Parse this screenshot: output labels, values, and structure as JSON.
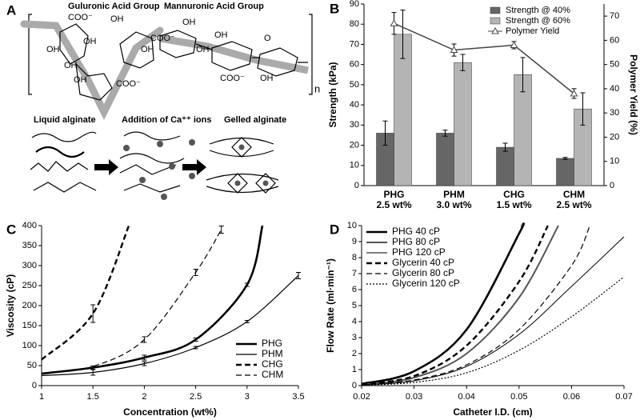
{
  "panel_labels": [
    "A",
    "B",
    "C",
    "D"
  ],
  "panel_a": {
    "group_labels": [
      "Guluronic Acid Group",
      "Mannuronic Acid Group"
    ],
    "chem_labels": [
      "COO⁻",
      "OH",
      "OH",
      "OH",
      "COO⁻",
      "OH",
      "OH",
      "OH",
      "OH",
      "COO⁻",
      "OH",
      "OH",
      "COO⁻",
      "OH",
      "O"
    ],
    "repeat_label": "n",
    "process_labels": [
      "Liquid alginate",
      "Addition of Ca⁺⁺ ions",
      "Gelled alginate"
    ]
  },
  "chart_data": [
    {
      "type": "bar",
      "categories": [
        "PHG\n2.5 wt%",
        "PHM\n3.0 wt%",
        "CHG\n1.5 wt%",
        "CHM\n2.5 wt%"
      ],
      "y_label": "Strength (kPa)",
      "y2_label": "Polymer Yield (%)",
      "ylim": [
        0,
        90
      ],
      "yticks": [
        0,
        10,
        20,
        30,
        40,
        50,
        60,
        70,
        80,
        90
      ],
      "y2lim": [
        0,
        75
      ],
      "y2ticks": [
        0,
        10,
        20,
        30,
        40,
        50,
        60,
        70
      ],
      "legend": "upper right",
      "series": [
        {
          "name": "Strength @ 40%",
          "color": "#666666",
          "values": [
            26,
            26,
            19,
            13.5
          ],
          "errors": [
            6,
            1.5,
            2,
            0.5
          ]
        },
        {
          "name": "Strength @ 60%",
          "color": "#b4b4b4",
          "values": [
            75,
            61,
            55,
            38
          ],
          "errors": [
            12,
            4,
            8.5,
            8
          ]
        },
        {
          "name": "Polymer Yield",
          "color": "#444444",
          "type": "line",
          "axis": "y2",
          "values": [
            67,
            56,
            58,
            38
          ],
          "errors": [
            4.5,
            2.5,
            1.5,
            2
          ]
        }
      ]
    },
    {
      "type": "line",
      "x_label": "Concentration (wt%)",
      "y_label": "Viscosity (cP)",
      "xlim": [
        1,
        3.5
      ],
      "xticks": [
        1,
        1.5,
        2,
        2.5,
        3,
        3.5
      ],
      "ylim": [
        0,
        400
      ],
      "yticks": [
        0,
        50,
        100,
        150,
        200,
        250,
        300,
        350,
        400
      ],
      "legend": "lower right",
      "series": [
        {
          "name": "PHG",
          "color": "#000000",
          "line_style": "solid",
          "line_width": 2.6,
          "x": [
            1,
            1.5,
            2,
            2.5,
            3,
            3.15
          ],
          "values": [
            30,
            45,
            70,
            115,
            252,
            400
          ],
          "errors": [
            null,
            4,
            6,
            4,
            4,
            null
          ]
        },
        {
          "name": "PHM",
          "color": "#000000",
          "line_style": "solid",
          "line_width": 1.2,
          "x": [
            1,
            1.5,
            2,
            2.5,
            3,
            3.5
          ],
          "values": [
            25,
            33,
            55,
            95,
            160,
            275
          ],
          "errors": [
            null,
            7,
            5,
            3,
            3,
            8
          ]
        },
        {
          "name": "CHG",
          "color": "#000000",
          "line_style": "dashed",
          "line_width": 2.4,
          "x": [
            1,
            1.5,
            1.85
          ],
          "values": [
            65,
            180,
            400
          ],
          "errors": [
            null,
            22,
            null
          ]
        },
        {
          "name": "CHM",
          "color": "#000000",
          "line_style": "dashed",
          "line_width": 1.2,
          "x": [
            1,
            1.5,
            2,
            2.5,
            2.75
          ],
          "values": [
            30,
            48,
            115,
            283,
            390
          ],
          "errors": [
            null,
            null,
            7,
            8,
            9
          ]
        }
      ]
    },
    {
      "type": "line",
      "x_label": "Catheter I.D. (cm)",
      "y_label": "Flow Rate (ml·min⁻¹)",
      "xlim": [
        0.02,
        0.07
      ],
      "xticks": [
        0.02,
        0.03,
        0.04,
        0.05,
        0.06,
        0.07
      ],
      "ylim": [
        0,
        10
      ],
      "yticks": [
        0,
        1,
        2,
        3,
        4,
        5,
        6,
        7,
        8,
        9,
        10
      ],
      "legend": "upper left",
      "series": [
        {
          "name": "PHG 40 cP",
          "color": "#000000",
          "line_style": "solid",
          "line_width": 2.6,
          "x": [
            0.02,
            0.03,
            0.04,
            0.05,
            0.0505
          ],
          "values": [
            0.1,
            0.9,
            3.5,
            9.5,
            10
          ]
        },
        {
          "name": "PHG 80 cP",
          "color": "#555555",
          "line_style": "solid",
          "line_width": 2,
          "x": [
            0.02,
            0.03,
            0.04,
            0.05,
            0.0575
          ],
          "values": [
            0.05,
            0.5,
            2,
            5.5,
            10
          ]
        },
        {
          "name": "PHG 120 cP",
          "color": "#000000",
          "line_style": "solid",
          "line_width": 1,
          "x": [
            0.02,
            0.03,
            0.04,
            0.05,
            0.06,
            0.07
          ],
          "values": [
            0.03,
            0.3,
            1.2,
            3.2,
            6.2,
            9.3
          ]
        },
        {
          "name": "Glycerin 40 cP",
          "color": "#000000",
          "line_style": "dashed",
          "line_width": 2.4,
          "x": [
            0.02,
            0.03,
            0.04,
            0.05,
            0.0555
          ],
          "values": [
            0.1,
            0.6,
            2.5,
            6.5,
            10
          ]
        },
        {
          "name": "Glycerin 80 cP",
          "color": "#000000",
          "line_style": "dashed",
          "line_width": 1.2,
          "x": [
            0.02,
            0.03,
            0.04,
            0.05,
            0.06,
            0.0635
          ],
          "values": [
            0.05,
            0.35,
            1.3,
            3.5,
            7.5,
            10
          ]
        },
        {
          "name": "Glycerin 120 cP",
          "color": "#000000",
          "line_style": "dotted",
          "line_width": 1.2,
          "x": [
            0.02,
            0.03,
            0.04,
            0.05,
            0.06,
            0.07
          ],
          "values": [
            0.03,
            0.2,
            0.8,
            2.2,
            4.3,
            6.8
          ]
        }
      ]
    }
  ]
}
